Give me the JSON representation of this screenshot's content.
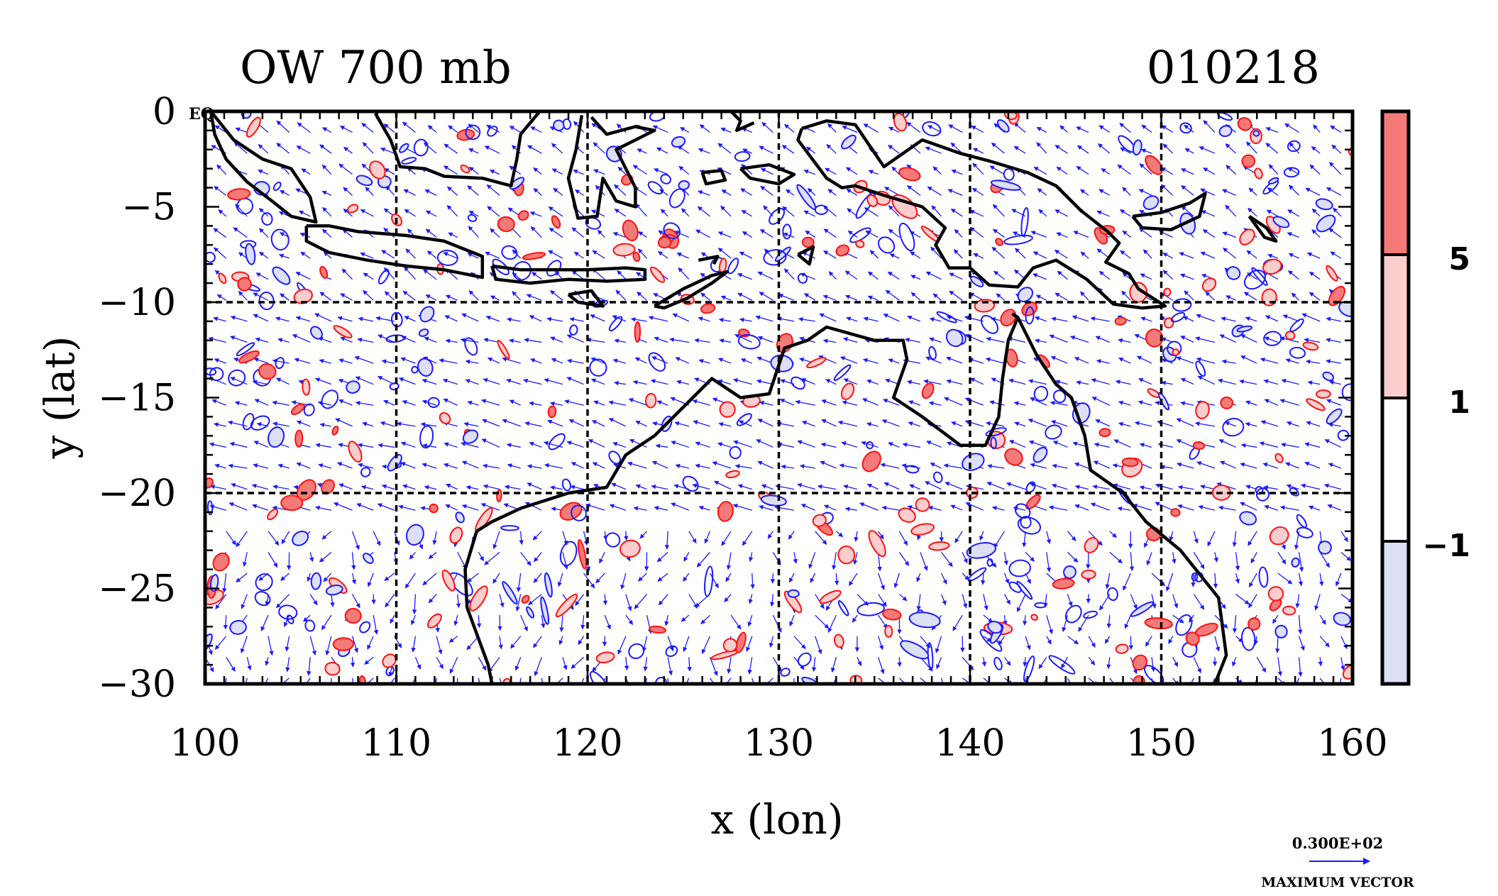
{
  "chart_data": {
    "type": "contour-map",
    "title_left": "OW 700 mb",
    "title_right": "010218",
    "xlabel": "x (lon)",
    "ylabel": "y (lat)",
    "xlim": [
      100,
      160
    ],
    "ylim": [
      -30,
      0
    ],
    "xticks": [
      100,
      110,
      120,
      130,
      140,
      150,
      160
    ],
    "yticks": [
      0,
      -5,
      -10,
      -15,
      -20,
      -25,
      -30
    ],
    "ytick_labels": [
      "0",
      "−5",
      "−10",
      "−15",
      "−20",
      "−25",
      "−30"
    ],
    "grid": {
      "x": [
        110,
        120,
        130,
        140,
        150
      ],
      "y": [
        -10,
        -20
      ],
      "style": "dashed"
    },
    "corner_label": "EQ",
    "colorbar": {
      "levels": [
        5,
        1,
        -1
      ],
      "level_labels": [
        "5",
        "1",
        "−1"
      ],
      "bands": [
        {
          "from": 5,
          "color": "#f47a78"
        },
        {
          "from": 1,
          "to": 5,
          "color": "#fccdcd"
        },
        {
          "from": -1,
          "to": 1,
          "color": "#ffffff"
        },
        {
          "to": -1,
          "color": "#dcdff6"
        }
      ]
    },
    "vector_legend": {
      "value": "0.300E+02",
      "label": "MAXIMUM VECTOR",
      "color": "#1a1aff"
    },
    "colors": {
      "positive_contour": "#ff1010",
      "negative_contour": "#1a1aff",
      "coast": "#000000"
    },
    "coastlines": [
      {
        "name": "Australia",
        "points": [
          [
            114.2,
            -22
          ],
          [
            113.6,
            -24
          ],
          [
            113.7,
            -26
          ],
          [
            114.8,
            -29
          ],
          [
            115,
            -30
          ],
          [
            152.8,
            -30
          ],
          [
            153.4,
            -28.5
          ],
          [
            153,
            -25.5
          ],
          [
            151,
            -23
          ],
          [
            149.2,
            -21.5
          ],
          [
            148,
            -20
          ],
          [
            146.3,
            -18.8
          ],
          [
            146,
            -17
          ],
          [
            145.3,
            -15
          ],
          [
            144.5,
            -14.3
          ],
          [
            143.5,
            -12.8
          ],
          [
            142.5,
            -10.8
          ],
          [
            142,
            -12
          ],
          [
            141.7,
            -14
          ],
          [
            141.5,
            -16
          ],
          [
            140.8,
            -17.5
          ],
          [
            139.5,
            -17.5
          ],
          [
            137.5,
            -16
          ],
          [
            136,
            -15
          ],
          [
            136.7,
            -13
          ],
          [
            136.5,
            -12
          ],
          [
            135,
            -12
          ],
          [
            132.5,
            -11.3
          ],
          [
            131.5,
            -12
          ],
          [
            130.3,
            -12.4
          ],
          [
            129.5,
            -14.8
          ],
          [
            128,
            -15
          ],
          [
            126.5,
            -14
          ],
          [
            125,
            -15.5
          ],
          [
            123.5,
            -17
          ],
          [
            122,
            -18
          ],
          [
            121,
            -19.7
          ],
          [
            119,
            -20
          ],
          [
            116.5,
            -20.8
          ],
          [
            115,
            -21.5
          ],
          [
            114.2,
            -22
          ]
        ]
      },
      {
        "name": "New Guinea",
        "points": [
          [
            131.2,
            -0.9
          ],
          [
            132.5,
            -0.5
          ],
          [
            134,
            -0.7
          ],
          [
            135.5,
            -2.9
          ],
          [
            137.5,
            -1.5
          ],
          [
            139.5,
            -2.2
          ],
          [
            141,
            -2.6
          ],
          [
            143,
            -3.2
          ],
          [
            144.5,
            -3.9
          ],
          [
            145.8,
            -5.2
          ],
          [
            147.2,
            -6.3
          ],
          [
            147.8,
            -6.9
          ],
          [
            147.1,
            -7.9
          ],
          [
            148.3,
            -8.5
          ],
          [
            148.8,
            -9.3
          ],
          [
            150.2,
            -10.2
          ],
          [
            149,
            -10.3
          ],
          [
            147.5,
            -10.1
          ],
          [
            146.1,
            -8.8
          ],
          [
            144.5,
            -7.8
          ],
          [
            143.3,
            -8.2
          ],
          [
            142.5,
            -9.2
          ],
          [
            141,
            -9.1
          ],
          [
            140,
            -8.2
          ],
          [
            138.9,
            -8.2
          ],
          [
            138.2,
            -7
          ],
          [
            138.7,
            -6.1
          ],
          [
            137.5,
            -5
          ],
          [
            135.5,
            -4.4
          ],
          [
            134,
            -3.9
          ],
          [
            133.3,
            -4
          ],
          [
            132.5,
            -3.5
          ],
          [
            131.9,
            -2.7
          ],
          [
            131,
            -1.5
          ],
          [
            131.2,
            -0.9
          ]
        ]
      },
      {
        "name": "Sumatra",
        "points": [
          [
            100.3,
            0
          ],
          [
            101.5,
            -1.5
          ],
          [
            103,
            -2.5
          ],
          [
            104.5,
            -3
          ],
          [
            105.5,
            -4.5
          ],
          [
            105.8,
            -5.8
          ],
          [
            104.5,
            -5.5
          ],
          [
            103.5,
            -4.7
          ],
          [
            102.2,
            -3.7
          ],
          [
            101.1,
            -2.5
          ],
          [
            100.5,
            -1.2
          ],
          [
            100.3,
            0
          ]
        ]
      },
      {
        "name": "Java",
        "points": [
          [
            105.3,
            -6
          ],
          [
            106.5,
            -6
          ],
          [
            108,
            -6.3
          ],
          [
            110.5,
            -6.5
          ],
          [
            112.5,
            -6.8
          ],
          [
            114.5,
            -7.6
          ],
          [
            114.5,
            -8.7
          ],
          [
            112.5,
            -8.3
          ],
          [
            110.5,
            -8.1
          ],
          [
            108.5,
            -7.8
          ],
          [
            106.5,
            -7.4
          ],
          [
            105.3,
            -6.8
          ],
          [
            105.3,
            -6
          ]
        ]
      },
      {
        "name": "Borneo",
        "points": [
          [
            108.9,
            -0.1
          ],
          [
            109.7,
            -1.5
          ],
          [
            110.2,
            -2.9
          ],
          [
            111.5,
            -3
          ],
          [
            112.5,
            -3.4
          ],
          [
            114.5,
            -3.5
          ],
          [
            116,
            -3.9
          ],
          [
            116.3,
            -2.5
          ],
          [
            116.5,
            -1.2
          ],
          [
            117.5,
            0
          ]
        ]
      },
      {
        "name": "Sulawesi",
        "points": [
          [
            119.7,
            -0.2
          ],
          [
            119.4,
            -2
          ],
          [
            119,
            -3.5
          ],
          [
            119.5,
            -5.6
          ],
          [
            120.5,
            -5.5
          ],
          [
            120.8,
            -3.5
          ],
          [
            121.5,
            -4.7
          ],
          [
            122.5,
            -5
          ],
          [
            122.5,
            -4
          ],
          [
            121.5,
            -2
          ],
          [
            123.5,
            -1
          ],
          [
            122.5,
            -0.8
          ],
          [
            121,
            -1.2
          ],
          [
            120.2,
            -0.3
          ]
        ]
      },
      {
        "name": "Bali-Lombok-Sumbawa-Flores",
        "points": [
          [
            115,
            -8.1
          ],
          [
            116.5,
            -8.3
          ],
          [
            118,
            -8.3
          ],
          [
            120,
            -8.3
          ],
          [
            122,
            -8.2
          ],
          [
            123,
            -8.3
          ],
          [
            123,
            -8.8
          ],
          [
            121,
            -8.9
          ],
          [
            119,
            -8.8
          ],
          [
            117,
            -9
          ],
          [
            115.2,
            -8.8
          ],
          [
            115,
            -8.1
          ]
        ]
      },
      {
        "name": "Timor",
        "points": [
          [
            123.5,
            -10.2
          ],
          [
            125,
            -9.3
          ],
          [
            126.5,
            -8.6
          ],
          [
            127.3,
            -8.4
          ],
          [
            126.5,
            -9
          ],
          [
            125.2,
            -9.8
          ],
          [
            124,
            -10.3
          ],
          [
            123.5,
            -10.2
          ]
        ]
      },
      {
        "name": "Sumba",
        "points": [
          [
            119,
            -9.6
          ],
          [
            120.2,
            -9.4
          ],
          [
            120.8,
            -10.2
          ],
          [
            119.5,
            -10
          ],
          [
            119,
            -9.6
          ]
        ]
      },
      {
        "name": "New Britain",
        "points": [
          [
            148.5,
            -5.5
          ],
          [
            150,
            -5.3
          ],
          [
            151.5,
            -4.8
          ],
          [
            152.3,
            -4.3
          ],
          [
            152,
            -5.5
          ],
          [
            150.5,
            -6.2
          ],
          [
            149,
            -6.1
          ],
          [
            148.5,
            -5.5
          ]
        ]
      },
      {
        "name": "Bougainville",
        "points": [
          [
            154.6,
            -5.5
          ],
          [
            155.5,
            -6.1
          ],
          [
            156,
            -6.8
          ],
          [
            155.4,
            -6.6
          ],
          [
            154.6,
            -5.5
          ]
        ]
      },
      {
        "name": "Seram",
        "points": [
          [
            128,
            -3
          ],
          [
            129.5,
            -2.8
          ],
          [
            130.8,
            -3.3
          ],
          [
            130,
            -3.8
          ],
          [
            128.5,
            -3.5
          ],
          [
            128,
            -3
          ]
        ]
      },
      {
        "name": "Buru",
        "points": [
          [
            126,
            -3.2
          ],
          [
            127,
            -3.1
          ],
          [
            127.2,
            -3.6
          ],
          [
            126.2,
            -3.8
          ],
          [
            126,
            -3.2
          ]
        ]
      },
      {
        "name": "Halmahera",
        "points": [
          [
            127.5,
            0
          ],
          [
            128,
            -0.5
          ],
          [
            127.8,
            -1
          ],
          [
            128.7,
            -0.6
          ]
        ]
      },
      {
        "name": "Tanimbar",
        "points": [
          [
            131,
            -7.5
          ],
          [
            131.8,
            -7.1
          ],
          [
            131.6,
            -8
          ],
          [
            131,
            -7.5
          ]
        ]
      },
      {
        "name": "Wetar",
        "points": [
          [
            125.8,
            -7.8
          ],
          [
            126.8,
            -7.6
          ],
          [
            126.6,
            -8
          ]
        ]
      },
      {
        "name": "Cape York detail",
        "points": [
          [
            142.5,
            -10.8
          ],
          [
            142.2,
            -10.6
          ]
        ]
      }
    ]
  }
}
